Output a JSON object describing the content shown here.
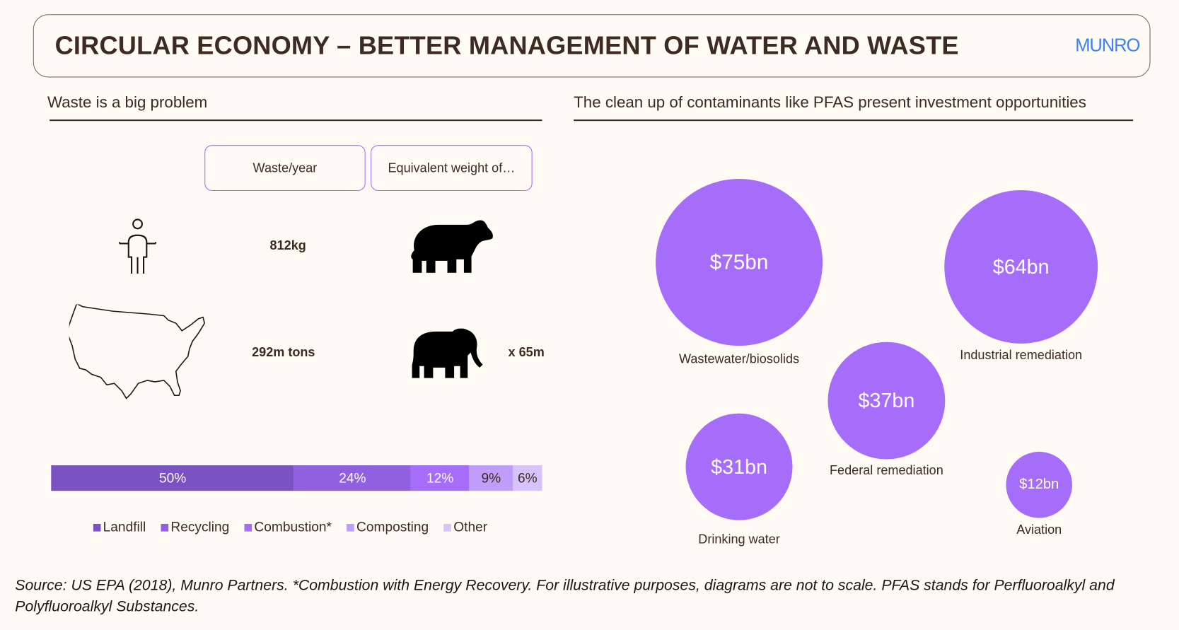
{
  "header": {
    "title": "CIRCULAR ECONOMY – BETTER MANAGEMENT OF WATER AND WASTE",
    "logo": "MUNRO"
  },
  "left": {
    "subtitle": "Waste is a big problem",
    "col_headers": [
      "Waste/year",
      "Equivalent weight of…"
    ],
    "rows": [
      {
        "icon": "person-icon",
        "waste": "812kg",
        "equivalent_icon": "bear-icon",
        "multiplier": ""
      },
      {
        "icon": "usa-map-icon",
        "waste": "292m tons",
        "equivalent_icon": "elephant-icon",
        "multiplier": "x 65m"
      }
    ]
  },
  "chart_data": {
    "type": "bar",
    "stacked": true,
    "categories": [
      "Landfill",
      "Recycling",
      "Combustion*",
      "Composting",
      "Other"
    ],
    "values": [
      50,
      24,
      12,
      9,
      6
    ],
    "labels": [
      "50%",
      "24%",
      "12%",
      "9%",
      "6%"
    ],
    "colors": [
      "#7b52c2",
      "#9060e0",
      "#a66dfb",
      "#bf9dfb",
      "#d6c3fb"
    ],
    "label_colors": [
      "#ffffff",
      "#ffffff",
      "#ffffff",
      "#3d2b22",
      "#3d2b22"
    ],
    "legend_placement": "bottom"
  },
  "right": {
    "subtitle": "The clean up of contaminants like PFAS present investment opportunities",
    "bubbles": [
      {
        "value": "$75bn",
        "amount": 75,
        "label": "Wastewater/biosolids"
      },
      {
        "value": "$64bn",
        "amount": 64,
        "label": "Industrial remediation"
      },
      {
        "value": "$37bn",
        "amount": 37,
        "label": "Federal remediation"
      },
      {
        "value": "$31bn",
        "amount": 31,
        "label": "Drinking water"
      },
      {
        "value": "$12bn",
        "amount": 12,
        "label": "Aviation"
      }
    ],
    "bubble_color": "#a66dfb"
  },
  "footer": {
    "source": "Source: US EPA (2018), Munro Partners. *Combustion with Energy Recovery. For illustrative purposes, diagrams are not to scale. PFAS stands for Perfluoroalkyl and Polyfluoroalkyl Substances."
  }
}
